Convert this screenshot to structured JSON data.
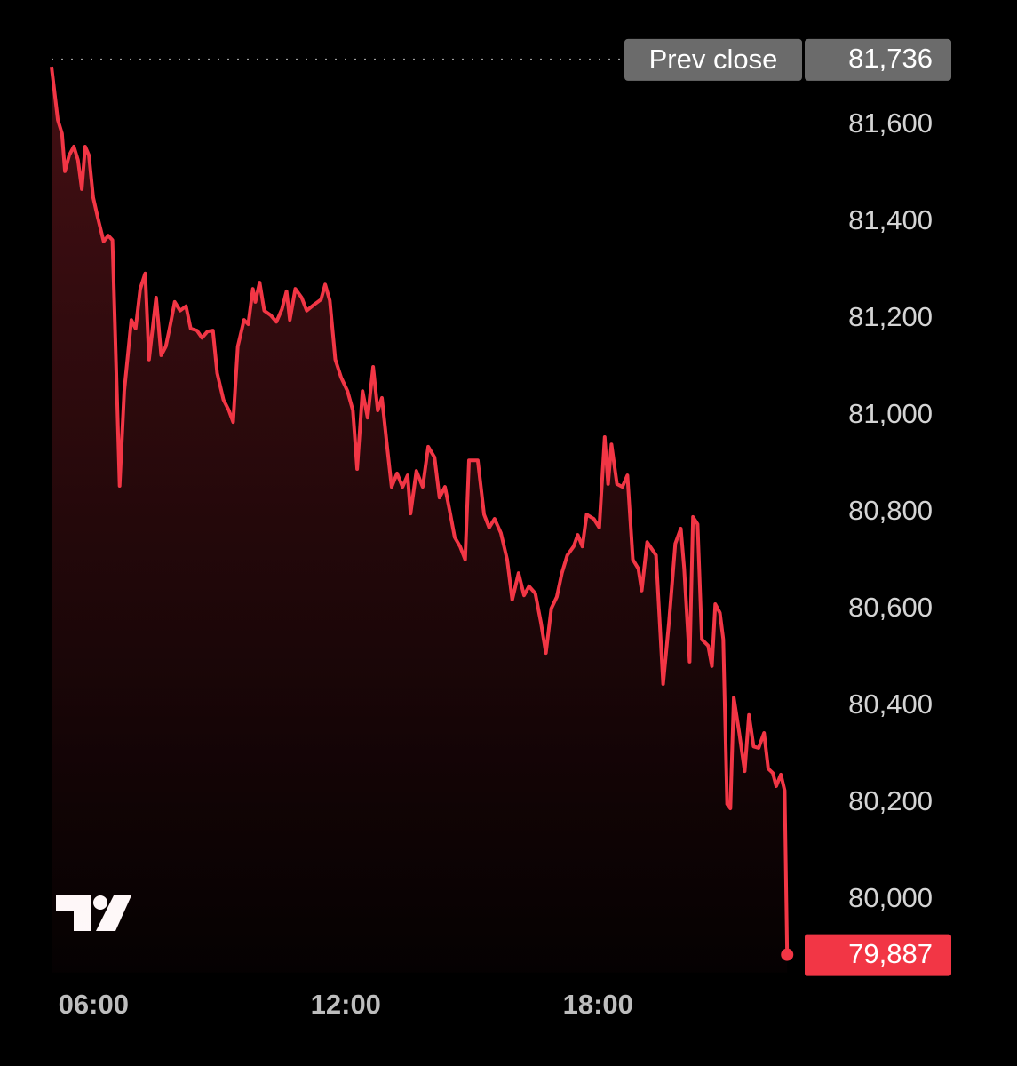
{
  "chart_data": {
    "type": "area-line",
    "series": [
      {
        "color": "#f23645",
        "x": [
          5.0,
          5.15,
          5.25,
          5.32,
          5.42,
          5.53,
          5.63,
          5.72,
          5.8,
          5.89,
          5.99,
          6.1,
          6.24,
          6.35,
          6.45,
          6.62,
          6.73,
          6.9,
          7.0,
          7.11,
          7.23,
          7.32,
          7.49,
          7.61,
          7.72,
          7.83,
          7.93,
          8.06,
          8.2,
          8.31,
          8.46,
          8.58,
          8.71,
          8.84,
          8.94,
          9.09,
          9.22,
          9.32,
          9.43,
          9.58,
          9.68,
          9.79,
          9.85,
          9.95,
          10.06,
          10.21,
          10.35,
          10.48,
          10.59,
          10.67,
          10.8,
          10.95,
          11.07,
          11.24,
          11.41,
          11.51,
          11.62,
          11.75,
          11.89,
          12.04,
          12.17,
          12.27,
          12.4,
          12.52,
          12.65,
          12.76,
          12.86,
          12.99,
          13.09,
          13.22,
          13.35,
          13.47,
          13.54,
          13.68,
          13.83,
          13.96,
          14.11,
          14.23,
          14.36,
          14.49,
          14.59,
          14.72,
          14.84,
          14.93,
          15.14,
          15.29,
          15.41,
          15.54,
          15.69,
          15.84,
          15.96,
          16.11,
          16.24,
          16.36,
          16.51,
          16.64,
          16.76,
          16.89,
          17.02,
          17.14,
          17.27,
          17.42,
          17.52,
          17.63,
          17.73,
          17.9,
          18.03,
          18.16,
          18.24,
          18.32,
          18.45,
          18.58,
          18.7,
          18.83,
          18.96,
          19.04,
          19.17,
          19.38,
          19.55,
          19.69,
          19.84,
          19.97,
          20.05,
          20.18,
          20.26,
          20.37,
          20.47,
          20.62,
          20.71,
          20.79,
          20.9,
          20.98,
          21.07,
          21.15,
          21.23,
          21.36,
          21.49,
          21.59,
          21.7,
          21.82,
          21.95,
          22.05,
          22.16,
          22.24,
          22.35,
          22.44,
          22.5
        ],
        "values": [
          81721,
          81611,
          81583,
          81505,
          81538,
          81556,
          81528,
          81468,
          81556,
          81538,
          81451,
          81409,
          81360,
          81372,
          81363,
          80855,
          81051,
          81198,
          81180,
          81262,
          81294,
          81116,
          81244,
          81125,
          81143,
          81189,
          81235,
          81217,
          81226,
          81180,
          81176,
          81161,
          81174,
          81176,
          81088,
          81033,
          81011,
          80987,
          81143,
          81198,
          81189,
          81262,
          81235,
          81275,
          81217,
          81208,
          81194,
          81220,
          81257,
          81198,
          81262,
          81244,
          81217,
          81229,
          81240,
          81271,
          81238,
          81116,
          81079,
          81051,
          81011,
          80890,
          81051,
          80996,
          81101,
          81011,
          81037,
          80932,
          80853,
          80881,
          80853,
          80877,
          80798,
          80886,
          80853,
          80936,
          80914,
          80831,
          80853,
          80796,
          80749,
          80730,
          80703,
          80908,
          80908,
          80796,
          80769,
          80787,
          80758,
          80703,
          80620,
          80675,
          80629,
          80648,
          80633,
          80574,
          80510,
          80602,
          80626,
          80675,
          80712,
          80730,
          80754,
          80730,
          80796,
          80787,
          80769,
          80956,
          80859,
          80941,
          80859,
          80853,
          80877,
          80703,
          80684,
          80639,
          80739,
          80712,
          80446,
          80574,
          80736,
          80767,
          80684,
          80492,
          80791,
          80776,
          80538,
          80525,
          80483,
          80611,
          80593,
          80538,
          80198,
          80189,
          80418,
          80345,
          80266,
          80382,
          80317,
          80314,
          80345,
          80271,
          80262,
          80235,
          80259,
          80226,
          79887
        ]
      }
    ],
    "xlim": [
      5,
      22.55
    ],
    "xticks": [
      {
        "value": 6,
        "label": "06:00"
      },
      {
        "value": 12,
        "label": "12:00"
      },
      {
        "value": 18,
        "label": "18:00"
      }
    ],
    "ylim": [
      79850,
      81760
    ],
    "yticks": [
      {
        "value": 80000,
        "label": "80,000"
      },
      {
        "value": 80200,
        "label": "80,200"
      },
      {
        "value": 80400,
        "label": "80,400"
      },
      {
        "value": 80600,
        "label": "80,600"
      },
      {
        "value": 80800,
        "label": "80,800"
      },
      {
        "value": 81000,
        "label": "81,000"
      },
      {
        "value": 81200,
        "label": "81,200"
      },
      {
        "value": 81400,
        "label": "81,400"
      },
      {
        "value": 81600,
        "label": "81,600"
      }
    ],
    "reference_line": {
      "label": "Prev close",
      "value": 81736,
      "value_label": "81,736"
    },
    "last_price": {
      "value": 79887,
      "label": "79,887"
    }
  }
}
